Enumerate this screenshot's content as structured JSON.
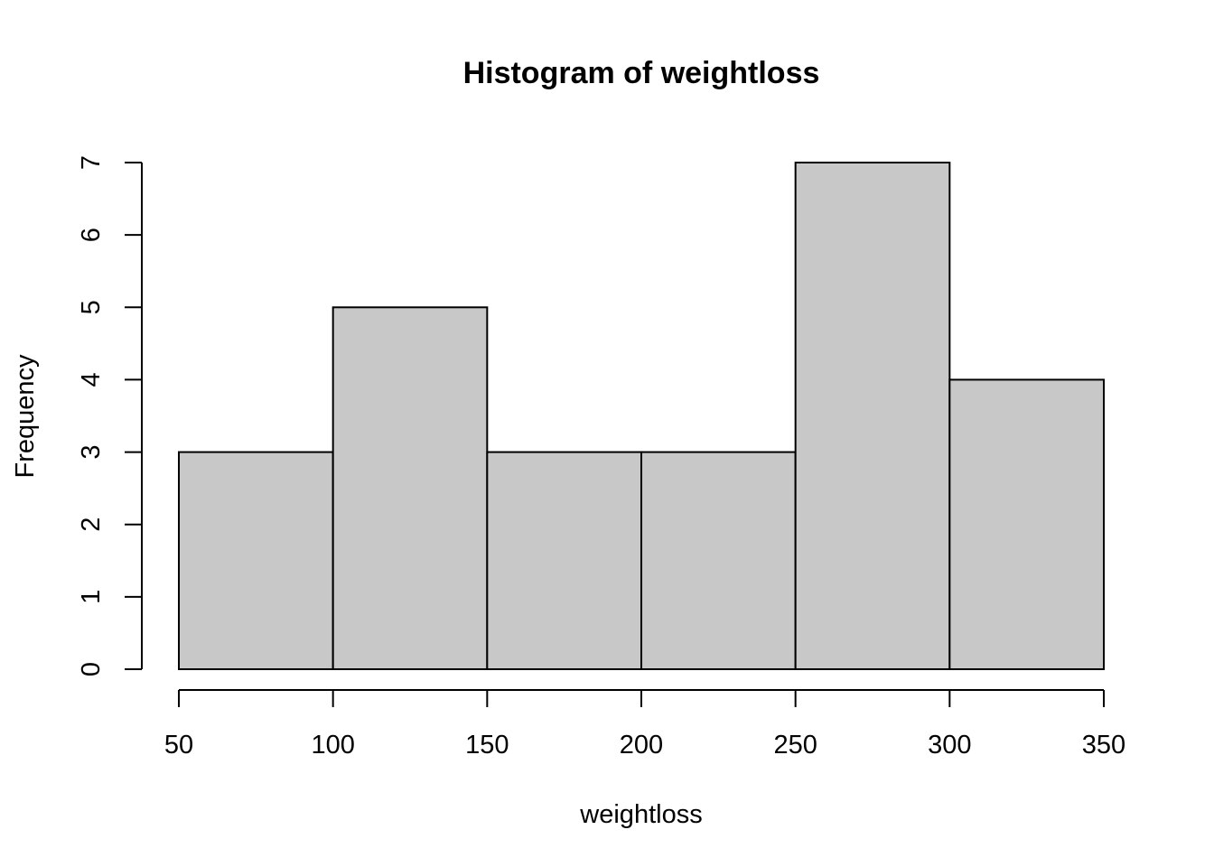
{
  "chart_data": {
    "type": "bar",
    "title": "Histogram of weightloss",
    "xlabel": "weightloss",
    "ylabel": "Frequency",
    "bins": [
      {
        "x0": 50,
        "x1": 100,
        "count": 3
      },
      {
        "x0": 100,
        "x1": 150,
        "count": 5
      },
      {
        "x0": 150,
        "x1": 200,
        "count": 3
      },
      {
        "x0": 200,
        "x1": 250,
        "count": 3
      },
      {
        "x0": 250,
        "x1": 300,
        "count": 7
      },
      {
        "x0": 300,
        "x1": 350,
        "count": 4
      }
    ],
    "xlim": [
      50,
      350
    ],
    "ylim": [
      0,
      7
    ],
    "xticks": [
      "50",
      "100",
      "150",
      "200",
      "250",
      "300",
      "350"
    ],
    "yticks": [
      "0",
      "1",
      "2",
      "3",
      "4",
      "5",
      "6",
      "7"
    ],
    "colors": {
      "bar_fill": "#c8c8c8",
      "bar_stroke": "#000000"
    }
  }
}
